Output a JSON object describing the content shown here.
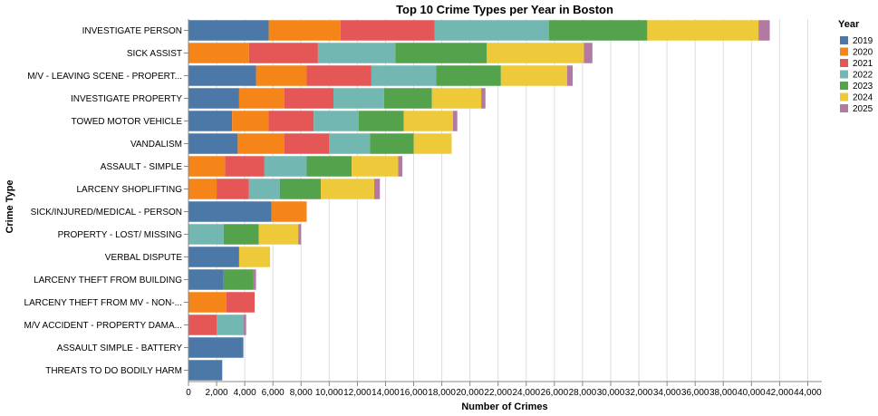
{
  "chart_data": {
    "type": "bar",
    "orientation": "horizontal",
    "stacked": true,
    "title": "Top 10 Crime Types per Year in Boston",
    "xlabel": "Number of Crimes",
    "ylabel": "Crime Type",
    "xlim": [
      0,
      45000
    ],
    "x_ticks": [
      0,
      2000,
      4000,
      6000,
      8000,
      10000,
      12000,
      14000,
      16000,
      18000,
      20000,
      22000,
      24000,
      26000,
      28000,
      30000,
      32000,
      34000,
      36000,
      38000,
      40000,
      42000,
      44000
    ],
    "x_tick_labels": [
      "0",
      "2,000",
      "4,000",
      "6,000",
      "8,000",
      "10,000",
      "12,000",
      "14,000",
      "16,000",
      "18,000",
      "20,000",
      "22,000",
      "24,000",
      "26,000",
      "28,000",
      "30,000",
      "32,000",
      "34,000",
      "36,000",
      "38,000",
      "40,000",
      "42,000",
      "44,000"
    ],
    "grid": true,
    "legend_position": "right",
    "legend_title": "Year",
    "categories": [
      "INVESTIGATE PERSON",
      "SICK ASSIST",
      "M/V - LEAVING SCENE - PROPERT...",
      "INVESTIGATE PROPERTY",
      "TOWED MOTOR VEHICLE",
      "VANDALISM",
      "ASSAULT - SIMPLE",
      "LARCENY SHOPLIFTING",
      "SICK/INJURED/MEDICAL - PERSON",
      "PROPERTY - LOST/ MISSING",
      "VERBAL DISPUTE",
      "LARCENY THEFT FROM BUILDING",
      "LARCENY THEFT FROM MV - NON-...",
      "M/V ACCIDENT - PROPERTY DAMA...",
      "ASSAULT SIMPLE - BATTERY",
      "THREATS TO DO BODILY HARM"
    ],
    "series": [
      {
        "name": "2019",
        "color": "#4c78a8",
        "values": [
          5700,
          0,
          4800,
          3600,
          3100,
          3500,
          0,
          0,
          5900,
          0,
          3600,
          2500,
          0,
          0,
          3900,
          2400
        ]
      },
      {
        "name": "2020",
        "color": "#f58518",
        "values": [
          5100,
          4300,
          3600,
          3200,
          2600,
          3300,
          2600,
          2000,
          2500,
          0,
          0,
          0,
          2700,
          0,
          0,
          0
        ]
      },
      {
        "name": "2021",
        "color": "#e45756",
        "values": [
          6700,
          4900,
          4600,
          3500,
          3200,
          3200,
          2800,
          2300,
          0,
          0,
          0,
          0,
          2000,
          2000,
          0,
          0
        ]
      },
      {
        "name": "2022",
        "color": "#72b7b2",
        "values": [
          8100,
          5500,
          4600,
          3600,
          3200,
          2900,
          3000,
          2200,
          0,
          2500,
          0,
          0,
          0,
          1900,
          0,
          0
        ]
      },
      {
        "name": "2023",
        "color": "#54a24b",
        "values": [
          7000,
          6500,
          4600,
          3400,
          3200,
          3100,
          3200,
          2900,
          0,
          2500,
          0,
          2100,
          0,
          0,
          0,
          0
        ]
      },
      {
        "name": "2024",
        "color": "#eeca3b",
        "values": [
          7900,
          6900,
          4700,
          3500,
          3500,
          2700,
          3300,
          3800,
          0,
          2800,
          2200,
          0,
          0,
          0,
          0,
          0
        ]
      },
      {
        "name": "2025",
        "color": "#b279a2",
        "values": [
          800,
          600,
          400,
          300,
          300,
          0,
          300,
          400,
          0,
          200,
          0,
          200,
          0,
          200,
          0,
          0
        ]
      }
    ]
  }
}
